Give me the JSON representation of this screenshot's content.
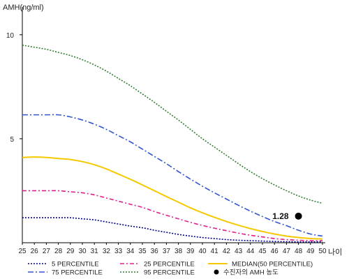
{
  "chart_data": {
    "type": "line",
    "ylabel": "AMH(ng/ml)",
    "xlabel": "나이",
    "xlim": [
      25,
      50
    ],
    "ylim": [
      0,
      11
    ],
    "x_ticks": [
      25,
      26,
      27,
      28,
      29,
      30,
      31,
      32,
      33,
      34,
      35,
      36,
      37,
      38,
      39,
      40,
      41,
      42,
      43,
      44,
      45,
      46,
      47,
      48,
      49,
      50
    ],
    "y_ticks": [
      5,
      10
    ],
    "x": [
      25,
      26,
      27,
      28,
      29,
      30,
      31,
      32,
      33,
      34,
      35,
      36,
      37,
      38,
      39,
      40,
      41,
      42,
      43,
      44,
      45,
      46,
      47,
      48,
      49,
      50
    ],
    "series": [
      {
        "name": "5 PERCENTILE",
        "color": "#000080",
        "dash": "2,2",
        "values": [
          1.2,
          1.2,
          1.2,
          1.2,
          1.2,
          1.15,
          1.1,
          1.0,
          0.9,
          0.8,
          0.72,
          0.6,
          0.5,
          0.4,
          0.32,
          0.25,
          0.2,
          0.15,
          0.12,
          0.1,
          0.08,
          0.06,
          0.05,
          0.04,
          0.04,
          0.04
        ]
      },
      {
        "name": "25 PERCENTILE",
        "color": "#e0208a",
        "dash": "6,3,2,3",
        "values": [
          2.5,
          2.5,
          2.5,
          2.5,
          2.45,
          2.4,
          2.3,
          2.15,
          2.0,
          1.85,
          1.7,
          1.5,
          1.32,
          1.15,
          0.98,
          0.83,
          0.7,
          0.58,
          0.46,
          0.36,
          0.28,
          0.2,
          0.15,
          0.12,
          0.1,
          0.1
        ]
      },
      {
        "name": "MEDIAN(50 PERCENTILE)",
        "color": "#f5c800",
        "dash": "",
        "values": [
          4.1,
          4.12,
          4.1,
          4.05,
          4.0,
          3.9,
          3.75,
          3.55,
          3.3,
          3.05,
          2.78,
          2.5,
          2.22,
          1.95,
          1.68,
          1.44,
          1.22,
          1.02,
          0.84,
          0.68,
          0.54,
          0.42,
          0.32,
          0.25,
          0.2,
          0.18
        ]
      },
      {
        "name": "75 PERCENTILE",
        "color": "#3355cc",
        "dash": "8,3,2,3",
        "values": [
          6.15,
          6.15,
          6.15,
          6.15,
          6.05,
          5.9,
          5.7,
          5.45,
          5.15,
          4.85,
          4.5,
          4.15,
          3.8,
          3.42,
          3.06,
          2.72,
          2.4,
          2.1,
          1.8,
          1.52,
          1.26,
          1.02,
          0.82,
          0.6,
          0.42,
          0.32
        ]
      },
      {
        "name": "95 PERCENTILE",
        "color": "#2e7d32",
        "dash": "2,2",
        "values": [
          9.5,
          9.4,
          9.3,
          9.15,
          9.0,
          8.8,
          8.55,
          8.25,
          7.9,
          7.55,
          7.15,
          6.75,
          6.32,
          5.9,
          5.45,
          5.0,
          4.6,
          4.2,
          3.8,
          3.42,
          3.08,
          2.78,
          2.5,
          2.25,
          2.05,
          1.9
        ]
      }
    ],
    "marker": {
      "label": "수진자의 AMH 농도",
      "x": 48,
      "y": 1.28,
      "value_label": "1.28",
      "color": "#000000"
    },
    "legend_position": "bottom",
    "grid": false
  }
}
